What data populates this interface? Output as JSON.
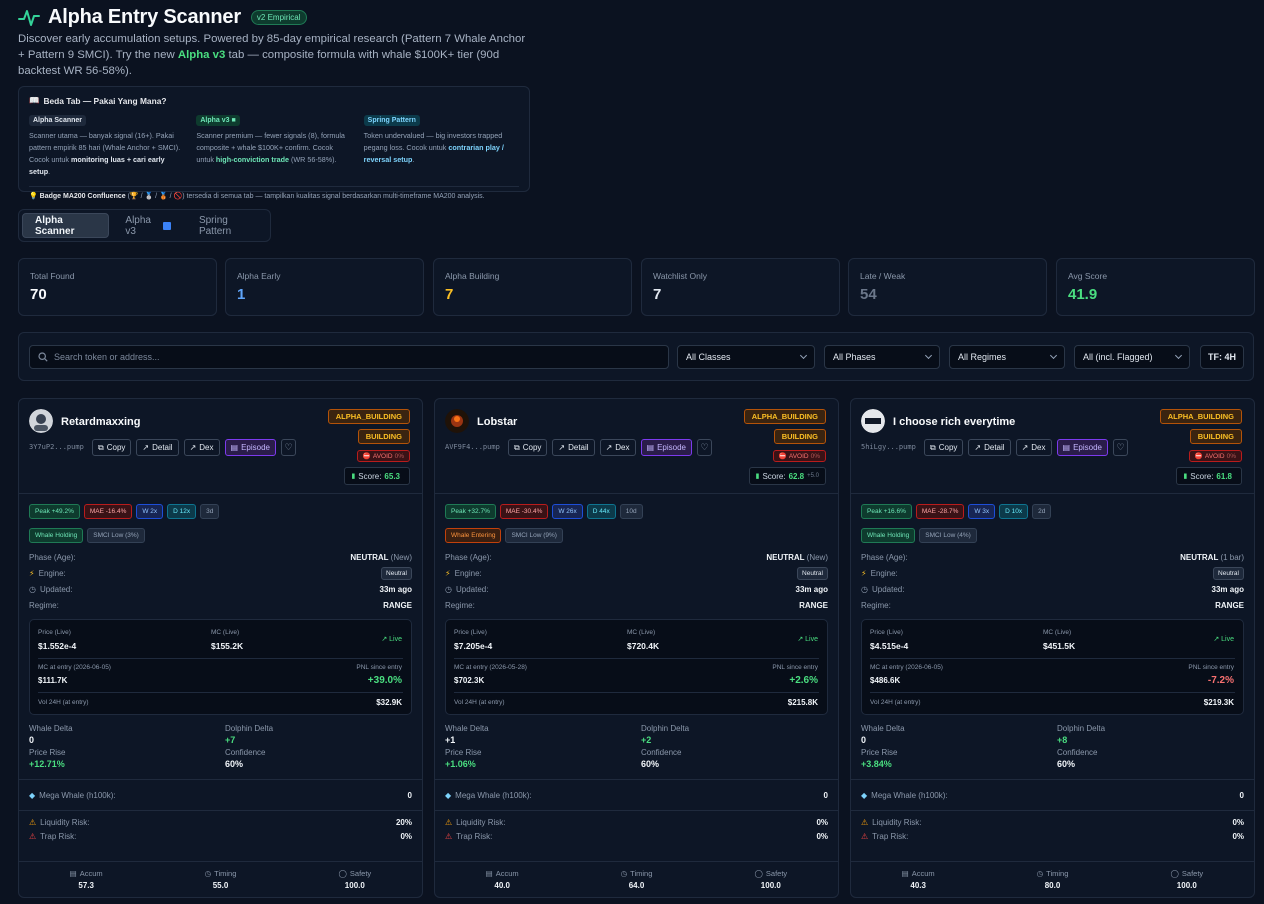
{
  "header": {
    "title": "Alpha Entry Scanner",
    "version": "v2 Empirical",
    "subtitle_pre": "Discover early accumulation setups. Powered by 85-day empirical research (Pattern 7 Whale Anchor + Pattern 9 SMCI). Try the new ",
    "subtitle_hl": "Alpha v3",
    "subtitle_post": " tab — composite formula with whale $100K+ tier (90d backtest WR 56-58%)."
  },
  "info": {
    "title": "Beda Tab — Pakai Yang Mana?",
    "cols": [
      {
        "tag": "Alpha Scanner",
        "desc_pre": "Scanner utama — banyak signal (16+). Pakai pattern empirik 85 hari (Whale Anchor + SMCI). Cocok untuk ",
        "desc_b": "monitoring luas + cari early setup",
        "desc_post": "."
      },
      {
        "tag": "Alpha v3 ■",
        "desc_pre": "Scanner premium — fewer signals (8), formula composite + whale $100K+ confirm. Cocok untuk ",
        "desc_b": "high-conviction trade",
        "desc_post": " (WR 56-58%)."
      },
      {
        "tag": "Spring Pattern",
        "desc_pre": "Token undervalued — big investors trapped pegang loss. Cocok untuk ",
        "desc_b": "contrarian play / reversal setup",
        "desc_post": "."
      }
    ],
    "foot_b": "Badge MA200 Confluence",
    "foot_icons": "(🏆 / 🥈 / 🥉 / 🚫)",
    "foot_post": " tersedia di semua tab — tampilkan kualitas signal berdasarkan multi-timeframe MA200 analysis."
  },
  "tabs": [
    "Alpha Scanner",
    "Alpha v3",
    "Spring Pattern"
  ],
  "stats": [
    {
      "label": "Total Found",
      "value": "70",
      "color": "#f8fafc"
    },
    {
      "label": "Alpha Early",
      "value": "1",
      "color": "#60a5fa"
    },
    {
      "label": "Alpha Building",
      "value": "7",
      "color": "#fbbf24"
    },
    {
      "label": "Watchlist Only",
      "value": "7",
      "color": "#e2e8f0"
    },
    {
      "label": "Late / Weak",
      "value": "54",
      "color": "#6b778a"
    },
    {
      "label": "Avg Score",
      "value": "41.9",
      "color": "#4ade80"
    }
  ],
  "filters": {
    "search_placeholder": "Search token or address...",
    "classes": "All Classes",
    "phases": "All Phases",
    "regimes": "All Regimes",
    "flagged": "All (incl. Flagged)",
    "tf": "TF: 4H"
  },
  "labels": {
    "copy": "Copy",
    "detail": "Detail",
    "dex": "Dex",
    "episode": "Episode",
    "avoid": "AVOID",
    "score": "Score:",
    "phase": "Phase (Age):",
    "engine": "Engine:",
    "updated": "Updated:",
    "regime": "Regime:",
    "price_live": "Price (Live)",
    "mc_live": "MC (Live)",
    "live": "Live",
    "pnl_since": "PNL since entry",
    "vol24": "Vol 24H (at entry)",
    "whale_delta": "Whale Delta",
    "dolphin_delta": "Dolphin Delta",
    "price_rise": "Price Rise",
    "confidence": "Confidence",
    "mega_whale": "Mega Whale (h100k):",
    "liq_risk": "Liquidity Risk:",
    "trap_risk": "Trap Risk:",
    "accum": "Accum",
    "timing": "Timing",
    "safety": "Safety"
  },
  "cards": [
    {
      "name": "Retardmaxxing",
      "addr": "3Y7uP2...pump",
      "badge1": "ALPHA_BUILDING",
      "badge2": "BUILDING",
      "avoid_pct": "0%",
      "score": "65.3",
      "score_delta": "",
      "peak": "Peak +49.2%",
      "mae": "MAE -16.4%",
      "w": "W 2x",
      "d": "D 12x",
      "days": "3d",
      "whale": "Whale Holding",
      "whale_kind": "holding",
      "smci": "SMCI Low (3%)",
      "phase": "NEUTRAL",
      "phase_note": "(New)",
      "engine": "Neutral",
      "updated": "33m ago",
      "regime": "RANGE",
      "price": "$1.552e-4",
      "mc": "$155.2K",
      "mc_entry_label": "MC at entry (2026-06-05)",
      "mc_entry": "$111.7K",
      "pnl": "+39.0%",
      "pnl_pos": true,
      "vol": "$32.9K",
      "whale_delta": "0",
      "dolphin_delta": "+7",
      "price_rise": "+12.71%",
      "confidence": "60%",
      "mega": "0",
      "liq": "20%",
      "trap": "0%",
      "accum": "57.3",
      "timing": "55.0",
      "safety": "100.0"
    },
    {
      "name": "Lobstar",
      "addr": "AVF9F4...pump",
      "badge1": "ALPHA_BUILDING",
      "badge2": "BUILDING",
      "avoid_pct": "0%",
      "score": "62.8",
      "score_delta": "+5.0",
      "peak": "Peak +32.7%",
      "mae": "MAE -30.4%",
      "w": "W 26x",
      "d": "D 44x",
      "days": "10d",
      "whale": "Whale Entering",
      "whale_kind": "entering",
      "smci": "SMCI Low (9%)",
      "phase": "NEUTRAL",
      "phase_note": "(New)",
      "engine": "Neutral",
      "updated": "33m ago",
      "regime": "RANGE",
      "price": "$7.205e-4",
      "mc": "$720.4K",
      "mc_entry_label": "MC at entry (2026-05-28)",
      "mc_entry": "$702.3K",
      "pnl": "+2.6%",
      "pnl_pos": true,
      "vol": "$215.8K",
      "whale_delta": "+1",
      "dolphin_delta": "+2",
      "price_rise": "+1.06%",
      "confidence": "60%",
      "mega": "0",
      "liq": "0%",
      "trap": "0%",
      "accum": "40.0",
      "timing": "64.0",
      "safety": "100.0"
    },
    {
      "name": "I choose rich everytime",
      "addr": "5hiLgy...pump",
      "badge1": "ALPHA_BUILDING",
      "badge2": "BUILDING",
      "avoid_pct": "0%",
      "score": "61.8",
      "score_delta": "",
      "peak": "Peak +16.6%",
      "mae": "MAE -28.7%",
      "w": "W 3x",
      "d": "D 10x",
      "days": "2d",
      "whale": "Whale Holding",
      "whale_kind": "holding",
      "smci": "SMCI Low (4%)",
      "phase": "NEUTRAL",
      "phase_note": "(1 bar)",
      "engine": "Neutral",
      "updated": "33m ago",
      "regime": "RANGE",
      "price": "$4.515e-4",
      "mc": "$451.5K",
      "mc_entry_label": "MC at entry (2026-06-05)",
      "mc_entry": "$486.6K",
      "pnl": "-7.2%",
      "pnl_pos": false,
      "vol": "$219.3K",
      "whale_delta": "0",
      "dolphin_delta": "+8",
      "price_rise": "+3.84%",
      "confidence": "60%",
      "mega": "0",
      "liq": "0%",
      "trap": "0%",
      "accum": "40.3",
      "timing": "80.0",
      "safety": "100.0"
    }
  ]
}
